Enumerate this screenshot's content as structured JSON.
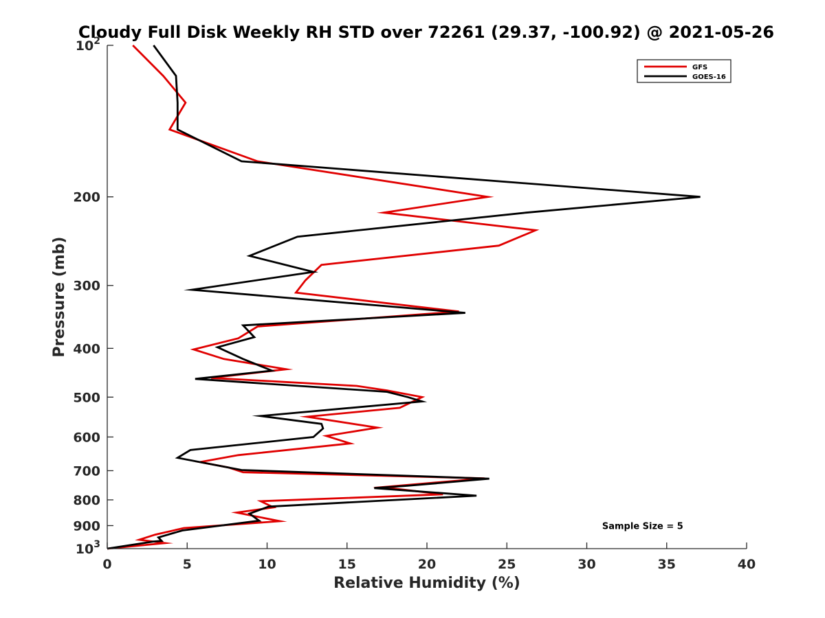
{
  "chart_data": {
    "type": "line",
    "title": "Cloudy Full Disk Weekly RH STD over 72261 (29.37, -100.92) @ 2021-05-26",
    "xlabel": "Relative Humidity (%)",
    "ylabel": "Pressure (mb)",
    "xlim": [
      0,
      40
    ],
    "ylim": [
      100,
      1000
    ],
    "yscale": "log",
    "yreversed": true,
    "grid": false,
    "legend_position": "top-right",
    "x_ticks": [
      0,
      5,
      10,
      15,
      20,
      25,
      30,
      35,
      40
    ],
    "y_ticks": [
      {
        "value": 100,
        "label": "10",
        "exp": "2"
      },
      {
        "value": 200,
        "label": "200"
      },
      {
        "value": 300,
        "label": "300"
      },
      {
        "value": 400,
        "label": "400"
      },
      {
        "value": 500,
        "label": "500"
      },
      {
        "value": 600,
        "label": "600"
      },
      {
        "value": 700,
        "label": "700"
      },
      {
        "value": 800,
        "label": "800"
      },
      {
        "value": 900,
        "label": "900"
      },
      {
        "value": 1000,
        "label": "10",
        "exp": "3"
      }
    ],
    "series": [
      {
        "name": "GFS",
        "color": "#e00000",
        "points": [
          [
            1.6,
            100
          ],
          [
            3.5,
            115
          ],
          [
            4.9,
            130
          ],
          [
            3.9,
            147
          ],
          [
            9.4,
            170
          ],
          [
            23.8,
            200
          ],
          [
            17.3,
            215
          ],
          [
            26.8,
            233
          ],
          [
            24.5,
            250
          ],
          [
            13.4,
            273
          ],
          [
            12.4,
            293
          ],
          [
            11.8,
            310
          ],
          [
            22.0,
            338
          ],
          [
            9.4,
            362
          ],
          [
            8.2,
            382
          ],
          [
            5.4,
            402
          ],
          [
            7.3,
            420
          ],
          [
            11.2,
            440
          ],
          [
            6.5,
            458
          ],
          [
            15.6,
            475
          ],
          [
            17.5,
            485
          ],
          [
            19.7,
            500
          ],
          [
            18.3,
            525
          ],
          [
            12.5,
            547
          ],
          [
            16.9,
            575
          ],
          [
            13.7,
            597
          ],
          [
            15.2,
            618
          ],
          [
            8.2,
            652
          ],
          [
            5.8,
            673
          ],
          [
            7.6,
            690
          ],
          [
            8.5,
            705
          ],
          [
            23.6,
            725
          ],
          [
            17.2,
            755
          ],
          [
            21.0,
            780
          ],
          [
            9.6,
            805
          ],
          [
            10.4,
            828
          ],
          [
            8.1,
            848
          ],
          [
            10.8,
            882
          ],
          [
            4.8,
            910
          ],
          [
            3.0,
            938
          ],
          [
            2.0,
            960
          ],
          [
            3.6,
            975
          ],
          [
            0.0,
            1000
          ]
        ]
      },
      {
        "name": "GOES-16",
        "color": "#000000",
        "points": [
          [
            2.9,
            100
          ],
          [
            4.3,
            115
          ],
          [
            4.4,
            130
          ],
          [
            4.4,
            147
          ],
          [
            8.4,
            170
          ],
          [
            37.1,
            200
          ],
          [
            26.2,
            215
          ],
          [
            11.9,
            240
          ],
          [
            8.9,
            262
          ],
          [
            12.9,
            282
          ],
          [
            5.3,
            306
          ],
          [
            22.4,
            340
          ],
          [
            8.5,
            360
          ],
          [
            9.2,
            380
          ],
          [
            6.9,
            398
          ],
          [
            8.5,
            420
          ],
          [
            10.3,
            443
          ],
          [
            5.5,
            460
          ],
          [
            17.5,
            488
          ],
          [
            18.8,
            500
          ],
          [
            19.7,
            510
          ],
          [
            9.6,
            545
          ],
          [
            13.4,
            565
          ],
          [
            13.5,
            577
          ],
          [
            12.9,
            600
          ],
          [
            5.2,
            637
          ],
          [
            4.4,
            660
          ],
          [
            8.4,
            698
          ],
          [
            23.9,
            726
          ],
          [
            18.8,
            750
          ],
          [
            16.7,
            758
          ],
          [
            23.1,
            785
          ],
          [
            10.1,
            825
          ],
          [
            8.9,
            852
          ],
          [
            9.5,
            880
          ],
          [
            4.7,
            920
          ],
          [
            3.2,
            950
          ],
          [
            3.4,
            965
          ],
          [
            2.9,
            968
          ],
          [
            0.0,
            1000
          ]
        ]
      }
    ],
    "annotations": [
      {
        "text": "Sample Size = 5",
        "x": 33.5,
        "y": 900
      }
    ]
  }
}
